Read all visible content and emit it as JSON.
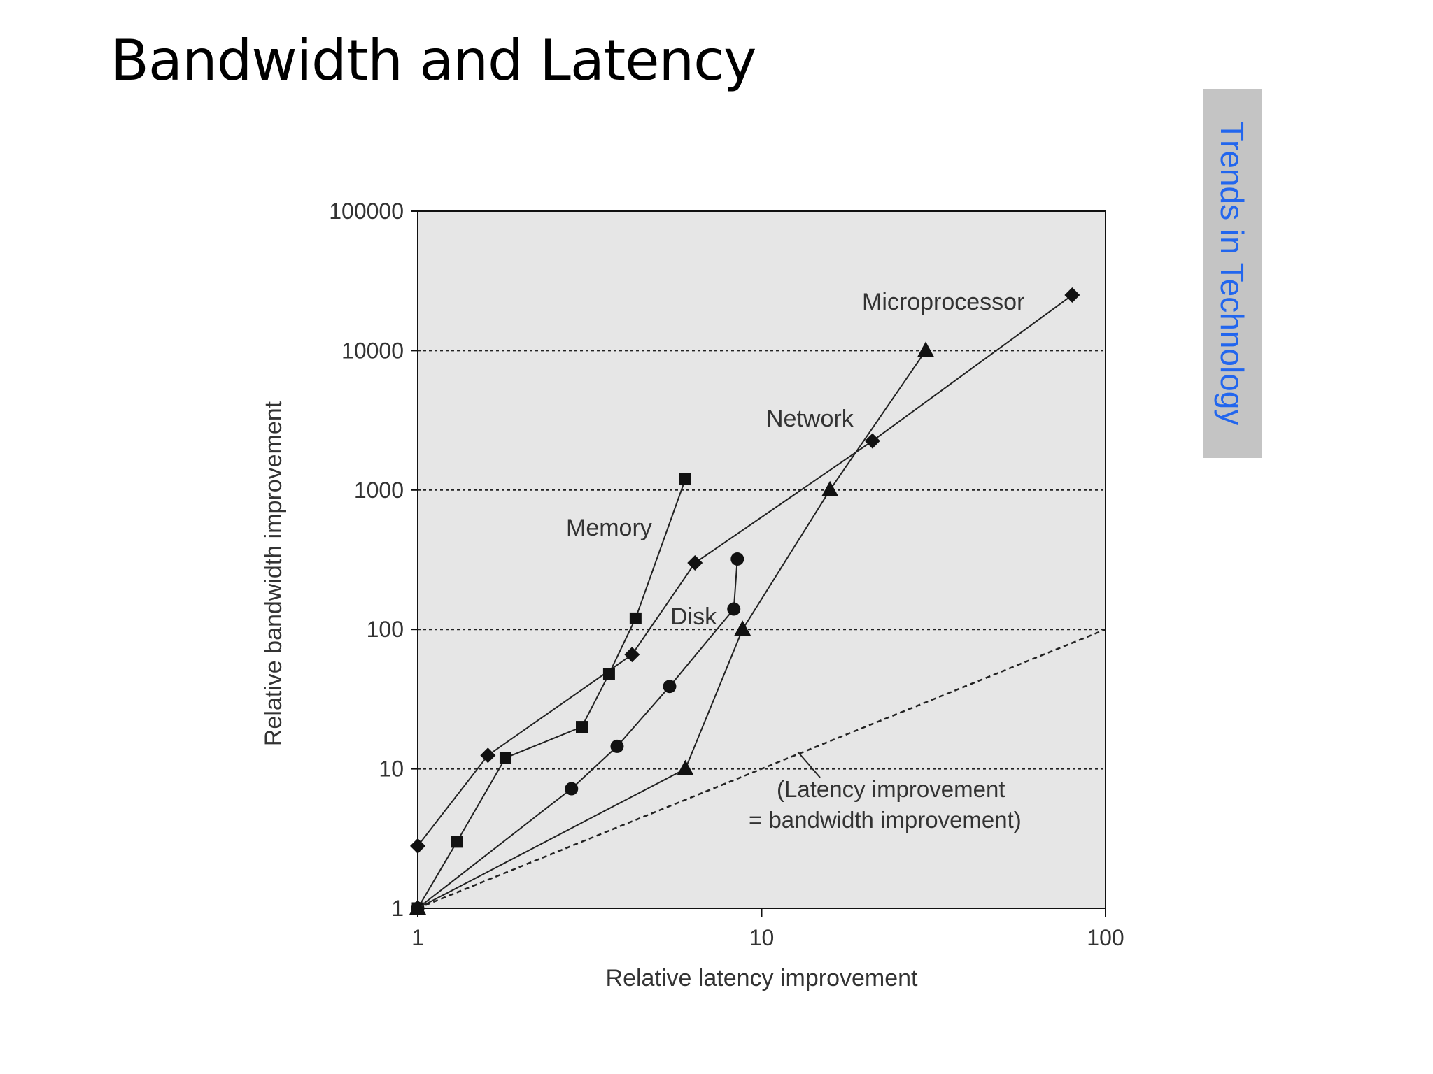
{
  "slide": {
    "title": "Bandwidth and Latency"
  },
  "side_tab": {
    "label": "Trends in Technology",
    "background": "#c4c4c4",
    "text_color": "#2266ee"
  },
  "chart_data": {
    "type": "scatter",
    "xlabel": "Relative latency improvement",
    "ylabel": "Relative bandwidth improvement",
    "xscale": "log",
    "yscale": "log",
    "xlim": [
      1,
      100
    ],
    "ylim": [
      1,
      100000
    ],
    "x_ticks": [
      "1",
      "10",
      "100"
    ],
    "y_ticks": [
      "1",
      "10",
      "100",
      "1000",
      "10000",
      "100000"
    ],
    "grid": "horizontal dotted",
    "plot_background": "#e6e6e6",
    "series": [
      {
        "name": "Microprocessor",
        "marker": "diamond",
        "points": [
          [
            1,
            2.8
          ],
          [
            1.6,
            12.5
          ],
          [
            4.2,
            66
          ],
          [
            6.4,
            300
          ],
          [
            21,
            2250
          ],
          [
            80,
            25000
          ]
        ]
      },
      {
        "name": "Memory",
        "marker": "square",
        "points": [
          [
            1,
            1
          ],
          [
            1.3,
            3
          ],
          [
            1.8,
            12
          ],
          [
            3,
            20
          ],
          [
            3.6,
            48
          ],
          [
            4.3,
            120
          ],
          [
            6,
            1200
          ]
        ]
      },
      {
        "name": "Disk",
        "marker": "circle",
        "points": [
          [
            1,
            1
          ],
          [
            2.8,
            7.2
          ],
          [
            3.8,
            14.5
          ],
          [
            5.4,
            39
          ],
          [
            8.3,
            140
          ],
          [
            8.5,
            320
          ]
        ]
      },
      {
        "name": "Network",
        "marker": "triangle",
        "points": [
          [
            1,
            1
          ],
          [
            6,
            10
          ],
          [
            8.8,
            100
          ],
          [
            15.8,
            1000
          ],
          [
            30,
            10000
          ]
        ]
      }
    ],
    "reference_line": {
      "label_line1": "(Latency improvement",
      "label_line2": "= bandwidth improvement)",
      "points": [
        [
          1,
          1
        ],
        [
          100,
          100
        ]
      ]
    }
  }
}
